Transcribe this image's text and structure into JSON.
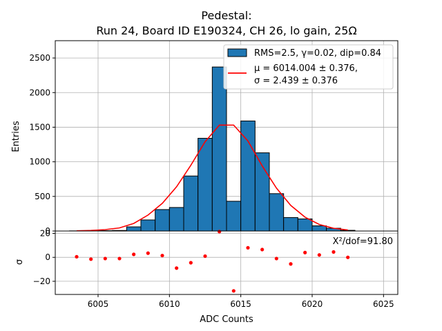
{
  "title_line1": "Pedestal:",
  "title_line2": "Run 24, Board ID E190324, CH 26, lo gain, 25Ω",
  "colors": {
    "bar": "#1f77b4",
    "fit": "#ff0000",
    "residual": "#ff0000",
    "grid": "#b0b0b0"
  },
  "chart_data": [
    {
      "type": "bar",
      "title": "Pedestal:\nRun 24, Board ID E190324, CH 26, lo gain, 25Ω",
      "ylabel": "Entries",
      "xlim": [
        6002,
        6026
      ],
      "ylim": [
        0,
        2750
      ],
      "grid": true,
      "legend_position": "top-right",
      "yticks": [
        0,
        500,
        1000,
        1500,
        2000,
        2500
      ],
      "histogram": {
        "name": "RMS=2.5, γ=0.02, dip=0.84",
        "bin_centers": [
          6003.5,
          6004.5,
          6005.5,
          6006.5,
          6007.5,
          6008.5,
          6009.5,
          6010.5,
          6011.5,
          6012.5,
          6013.5,
          6014.5,
          6015.5,
          6016.5,
          6017.5,
          6018.5,
          6019.5,
          6020.5,
          6021.5,
          6022.5
        ],
        "counts": [
          2,
          3,
          5,
          8,
          60,
          160,
          310,
          340,
          795,
          1340,
          2370,
          430,
          1590,
          1130,
          540,
          195,
          175,
          75,
          40,
          10
        ]
      },
      "fit": {
        "name_line1": "μ = 6014.004 ± 0.376,",
        "name_line2": "σ = 2.439 ± 0.376",
        "x": [
          6003.5,
          6004.5,
          6005.5,
          6006.5,
          6007.5,
          6008.5,
          6009.5,
          6010.5,
          6011.5,
          6012.5,
          6013.5,
          6014.5,
          6015.5,
          6016.5,
          6017.5,
          6018.5,
          6019.5,
          6020.5,
          6021.5,
          6022.5
        ],
        "y": [
          3,
          8,
          20,
          45,
          110,
          230,
          400,
          640,
          950,
          1290,
          1530,
          1530,
          1300,
          940,
          620,
          370,
          200,
          95,
          40,
          15
        ]
      }
    },
    {
      "type": "scatter",
      "xlabel": "ADC Counts",
      "ylabel": "σ",
      "xlim": [
        6002,
        6026
      ],
      "ylim": [
        -31,
        22
      ],
      "grid": true,
      "xticks": [
        6005,
        6010,
        6015,
        6020,
        6025
      ],
      "yticks": [
        -20,
        0,
        20
      ],
      "annotation": "X²/dof=91.80",
      "x": [
        6003.5,
        6004.5,
        6005.5,
        6006.5,
        6007.5,
        6008.5,
        6009.5,
        6010.5,
        6011.5,
        6012.5,
        6013.5,
        6014.5,
        6015.5,
        6016.5,
        6017.5,
        6018.5,
        6019.5,
        6020.5,
        6021.5,
        6022.5
      ],
      "y": [
        0.5,
        -1.5,
        -1,
        -1,
        2.5,
        3.5,
        1.5,
        -9,
        -4.5,
        1,
        21.5,
        -28,
        8,
        6.5,
        -1,
        -5.5,
        4,
        2,
        4.5,
        0
      ]
    }
  ]
}
